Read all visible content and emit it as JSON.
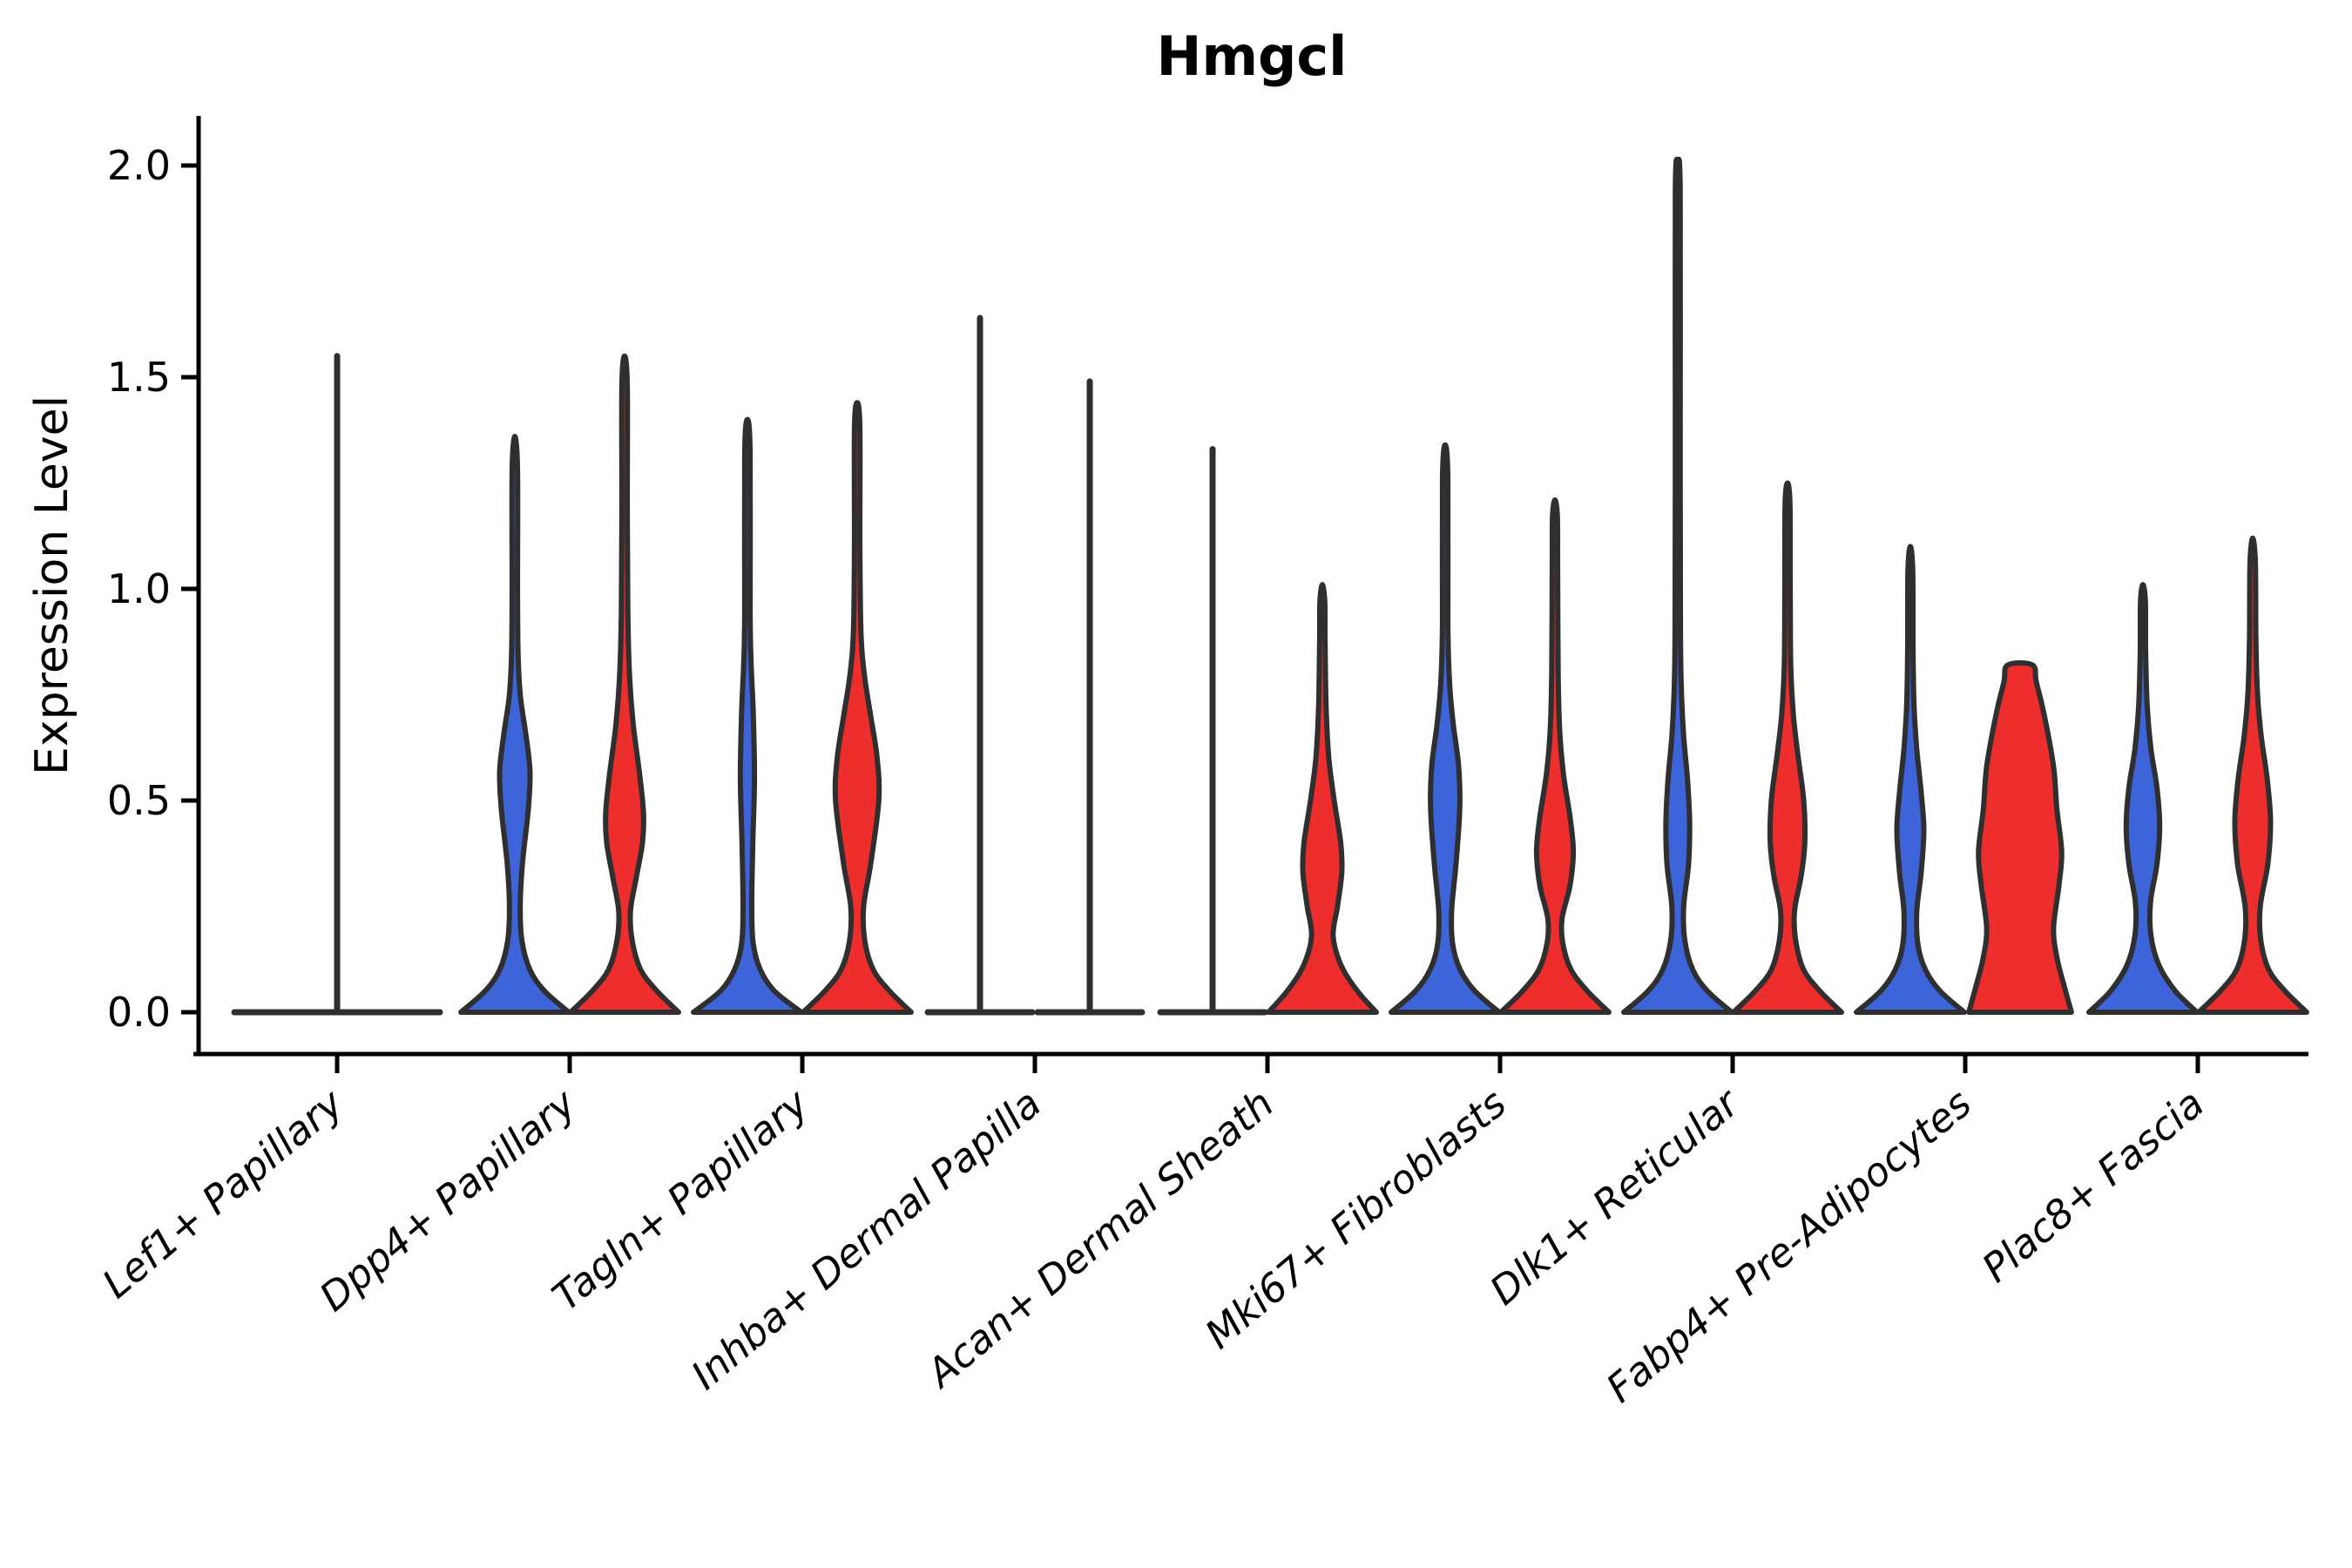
{
  "title": "Hmgcl",
  "y_axis": {
    "label": "Expression Level",
    "ticks": [
      {
        "value": 0.0,
        "label": "0.0"
      },
      {
        "value": 0.5,
        "label": "0.5"
      },
      {
        "value": 1.0,
        "label": "1.0"
      },
      {
        "value": 1.5,
        "label": "1.5"
      },
      {
        "value": 2.0,
        "label": "2.0"
      }
    ]
  },
  "x_axis": {
    "categories": [
      "Lef1+ Papillary",
      "Dpp4+ Papillary",
      "Tagln+ Papillary",
      "Inhba+ Dermal Papilla",
      "Acan+ Dermal Sheath",
      "Mki67+ Fibroblasts",
      "Dlk1+ Reticular",
      "Fabp4+ Pre-Adipocytes",
      "Plac8+ Fascia"
    ]
  },
  "colors": {
    "blue": "#3D64D9",
    "red": "#EE2D2D",
    "outline": "#2F2F2F",
    "axis": "#000000"
  },
  "chart_data": {
    "type": "violin",
    "title": "Hmgcl",
    "ylabel": "Expression Level",
    "ylim": [
      0,
      2.05
    ],
    "yticks": [
      0.0,
      0.5,
      1.0,
      1.5,
      2.0
    ],
    "grid": false,
    "legend": "none",
    "split": true,
    "split_colors": [
      "blue",
      "red"
    ],
    "categories": [
      "Lef1+ Papillary",
      "Dpp4+ Papillary",
      "Tagln+ Papillary",
      "Inhba+ Dermal Papilla",
      "Acan+ Dermal Sheath",
      "Mki67+ Fibroblasts",
      "Dlk1+ Reticular",
      "Fabp4+ Pre-Adipocytes",
      "Plac8+ Fascia"
    ],
    "violins": [
      {
        "category": 0,
        "side": "single",
        "color": "outline",
        "style": "spike",
        "max": 1.55,
        "half_width": 118
      },
      {
        "category": 1,
        "side": "left",
        "color": "blue",
        "style": "violin",
        "max": 1.36,
        "profile": [
          [
            0,
            1
          ],
          [
            0.05,
            0.55
          ],
          [
            0.1,
            0.28
          ],
          [
            0.17,
            0.13
          ],
          [
            0.25,
            0.1
          ],
          [
            0.35,
            0.14
          ],
          [
            0.48,
            0.25
          ],
          [
            0.57,
            0.28
          ],
          [
            0.66,
            0.2
          ],
          [
            0.75,
            0.1
          ],
          [
            0.85,
            0.06
          ],
          [
            1.0,
            0.05
          ],
          [
            1.28,
            0.05
          ],
          [
            1.36,
            0
          ]
        ]
      },
      {
        "category": 1,
        "side": "right",
        "color": "red",
        "style": "violin",
        "max": 1.55,
        "profile": [
          [
            0,
            1
          ],
          [
            0.05,
            0.6
          ],
          [
            0.1,
            0.3
          ],
          [
            0.17,
            0.14
          ],
          [
            0.24,
            0.11
          ],
          [
            0.32,
            0.22
          ],
          [
            0.4,
            0.33
          ],
          [
            0.47,
            0.35
          ],
          [
            0.56,
            0.28
          ],
          [
            0.68,
            0.16
          ],
          [
            0.8,
            0.09
          ],
          [
            0.95,
            0.06
          ],
          [
            1.2,
            0.05
          ],
          [
            1.48,
            0.05
          ],
          [
            1.55,
            0
          ]
        ]
      },
      {
        "category": 2,
        "side": "left",
        "color": "blue",
        "style": "violin",
        "max": 1.4,
        "profile": [
          [
            0,
            1
          ],
          [
            0.05,
            0.5
          ],
          [
            0.1,
            0.24
          ],
          [
            0.16,
            0.11
          ],
          [
            0.25,
            0.08
          ],
          [
            0.4,
            0.1
          ],
          [
            0.55,
            0.13
          ],
          [
            0.7,
            0.11
          ],
          [
            0.82,
            0.07
          ],
          [
            0.95,
            0.05
          ],
          [
            1.32,
            0.05
          ],
          [
            1.4,
            0
          ]
        ]
      },
      {
        "category": 2,
        "side": "right",
        "color": "red",
        "style": "violin",
        "max": 1.44,
        "profile": [
          [
            0,
            1
          ],
          [
            0.05,
            0.6
          ],
          [
            0.1,
            0.3
          ],
          [
            0.17,
            0.14
          ],
          [
            0.25,
            0.12
          ],
          [
            0.35,
            0.25
          ],
          [
            0.5,
            0.4
          ],
          [
            0.6,
            0.37
          ],
          [
            0.7,
            0.25
          ],
          [
            0.8,
            0.13
          ],
          [
            0.9,
            0.07
          ],
          [
            1.1,
            0.05
          ],
          [
            1.38,
            0.05
          ],
          [
            1.44,
            0
          ]
        ]
      },
      {
        "category": 3,
        "side": "left",
        "color": "outline",
        "style": "spike",
        "max": 1.64,
        "half_width": 60
      },
      {
        "category": 3,
        "side": "right",
        "color": "outline",
        "style": "spike",
        "max": 1.49,
        "half_width": 60
      },
      {
        "category": 4,
        "side": "left",
        "color": "outline",
        "style": "spike",
        "max": 1.33,
        "half_width": 60
      },
      {
        "category": 4,
        "side": "right",
        "color": "red",
        "style": "violin",
        "max": 1.01,
        "profile": [
          [
            0,
            1
          ],
          [
            0.05,
            0.65
          ],
          [
            0.11,
            0.35
          ],
          [
            0.18,
            0.2
          ],
          [
            0.25,
            0.28
          ],
          [
            0.33,
            0.36
          ],
          [
            0.4,
            0.34
          ],
          [
            0.5,
            0.22
          ],
          [
            0.6,
            0.12
          ],
          [
            0.72,
            0.07
          ],
          [
            0.88,
            0.05
          ],
          [
            0.97,
            0.045
          ],
          [
            1.01,
            0
          ]
        ]
      },
      {
        "category": 5,
        "side": "left",
        "color": "blue",
        "style": "violin",
        "max": 1.34,
        "profile": [
          [
            0,
            1
          ],
          [
            0.05,
            0.55
          ],
          [
            0.1,
            0.28
          ],
          [
            0.16,
            0.14
          ],
          [
            0.24,
            0.12
          ],
          [
            0.35,
            0.2
          ],
          [
            0.48,
            0.27
          ],
          [
            0.58,
            0.25
          ],
          [
            0.68,
            0.15
          ],
          [
            0.78,
            0.08
          ],
          [
            0.92,
            0.05
          ],
          [
            1.26,
            0.05
          ],
          [
            1.34,
            0
          ]
        ]
      },
      {
        "category": 5,
        "side": "right",
        "color": "red",
        "style": "violin",
        "max": 1.21,
        "profile": [
          [
            0,
            1
          ],
          [
            0.05,
            0.6
          ],
          [
            0.1,
            0.3
          ],
          [
            0.16,
            0.15
          ],
          [
            0.22,
            0.13
          ],
          [
            0.3,
            0.28
          ],
          [
            0.38,
            0.34
          ],
          [
            0.46,
            0.28
          ],
          [
            0.56,
            0.16
          ],
          [
            0.66,
            0.09
          ],
          [
            0.8,
            0.06
          ],
          [
            1.05,
            0.05
          ],
          [
            1.17,
            0.045
          ],
          [
            1.21,
            0
          ]
        ]
      },
      {
        "category": 6,
        "side": "left",
        "color": "blue",
        "style": "violin",
        "max": 2.01,
        "profile": [
          [
            0,
            1
          ],
          [
            0.05,
            0.55
          ],
          [
            0.1,
            0.28
          ],
          [
            0.17,
            0.13
          ],
          [
            0.25,
            0.11
          ],
          [
            0.35,
            0.2
          ],
          [
            0.45,
            0.22
          ],
          [
            0.55,
            0.18
          ],
          [
            0.65,
            0.11
          ],
          [
            0.75,
            0.07
          ],
          [
            0.9,
            0.05
          ],
          [
            1.4,
            0.045
          ],
          [
            1.94,
            0.045
          ],
          [
            2.01,
            0
          ]
        ]
      },
      {
        "category": 6,
        "side": "right",
        "color": "red",
        "style": "violin",
        "max": 1.25,
        "profile": [
          [
            0,
            1
          ],
          [
            0.05,
            0.6
          ],
          [
            0.1,
            0.3
          ],
          [
            0.17,
            0.15
          ],
          [
            0.24,
            0.13
          ],
          [
            0.32,
            0.25
          ],
          [
            0.4,
            0.32
          ],
          [
            0.5,
            0.3
          ],
          [
            0.6,
            0.2
          ],
          [
            0.7,
            0.11
          ],
          [
            0.82,
            0.06
          ],
          [
            1.0,
            0.05
          ],
          [
            1.2,
            0.045
          ],
          [
            1.25,
            0
          ]
        ]
      },
      {
        "category": 7,
        "side": "left",
        "color": "blue",
        "style": "violin",
        "max": 1.1,
        "profile": [
          [
            0,
            1
          ],
          [
            0.05,
            0.55
          ],
          [
            0.1,
            0.28
          ],
          [
            0.16,
            0.14
          ],
          [
            0.24,
            0.12
          ],
          [
            0.33,
            0.2
          ],
          [
            0.43,
            0.25
          ],
          [
            0.52,
            0.2
          ],
          [
            0.62,
            0.12
          ],
          [
            0.72,
            0.07
          ],
          [
            0.85,
            0.05
          ],
          [
            1.04,
            0.045
          ],
          [
            1.1,
            0
          ]
        ]
      },
      {
        "category": 7,
        "side": "right",
        "color": "red",
        "style": "violin",
        "max": 0.82,
        "truncated_top": true,
        "profile": [
          [
            0,
            0.95
          ],
          [
            0.06,
            0.82
          ],
          [
            0.13,
            0.68
          ],
          [
            0.2,
            0.62
          ],
          [
            0.3,
            0.72
          ],
          [
            0.38,
            0.77
          ],
          [
            0.48,
            0.68
          ],
          [
            0.58,
            0.62
          ],
          [
            0.7,
            0.45
          ],
          [
            0.78,
            0.3
          ],
          [
            0.82,
            0.23
          ]
        ]
      },
      {
        "category": 8,
        "side": "left",
        "color": "blue",
        "style": "violin",
        "max": 1.01,
        "profile": [
          [
            0,
            1
          ],
          [
            0.05,
            0.6
          ],
          [
            0.11,
            0.3
          ],
          [
            0.18,
            0.15
          ],
          [
            0.26,
            0.14
          ],
          [
            0.35,
            0.26
          ],
          [
            0.44,
            0.31
          ],
          [
            0.53,
            0.26
          ],
          [
            0.62,
            0.15
          ],
          [
            0.72,
            0.08
          ],
          [
            0.85,
            0.05
          ],
          [
            0.97,
            0.045
          ],
          [
            1.01,
            0
          ]
        ]
      },
      {
        "category": 8,
        "side": "right",
        "color": "red",
        "style": "violin",
        "max": 1.12,
        "profile": [
          [
            0,
            1
          ],
          [
            0.05,
            0.6
          ],
          [
            0.1,
            0.3
          ],
          [
            0.17,
            0.15
          ],
          [
            0.25,
            0.14
          ],
          [
            0.35,
            0.28
          ],
          [
            0.45,
            0.33
          ],
          [
            0.55,
            0.27
          ],
          [
            0.65,
            0.16
          ],
          [
            0.75,
            0.09
          ],
          [
            0.88,
            0.06
          ],
          [
            1.06,
            0.05
          ],
          [
            1.12,
            0
          ]
        ]
      }
    ]
  }
}
